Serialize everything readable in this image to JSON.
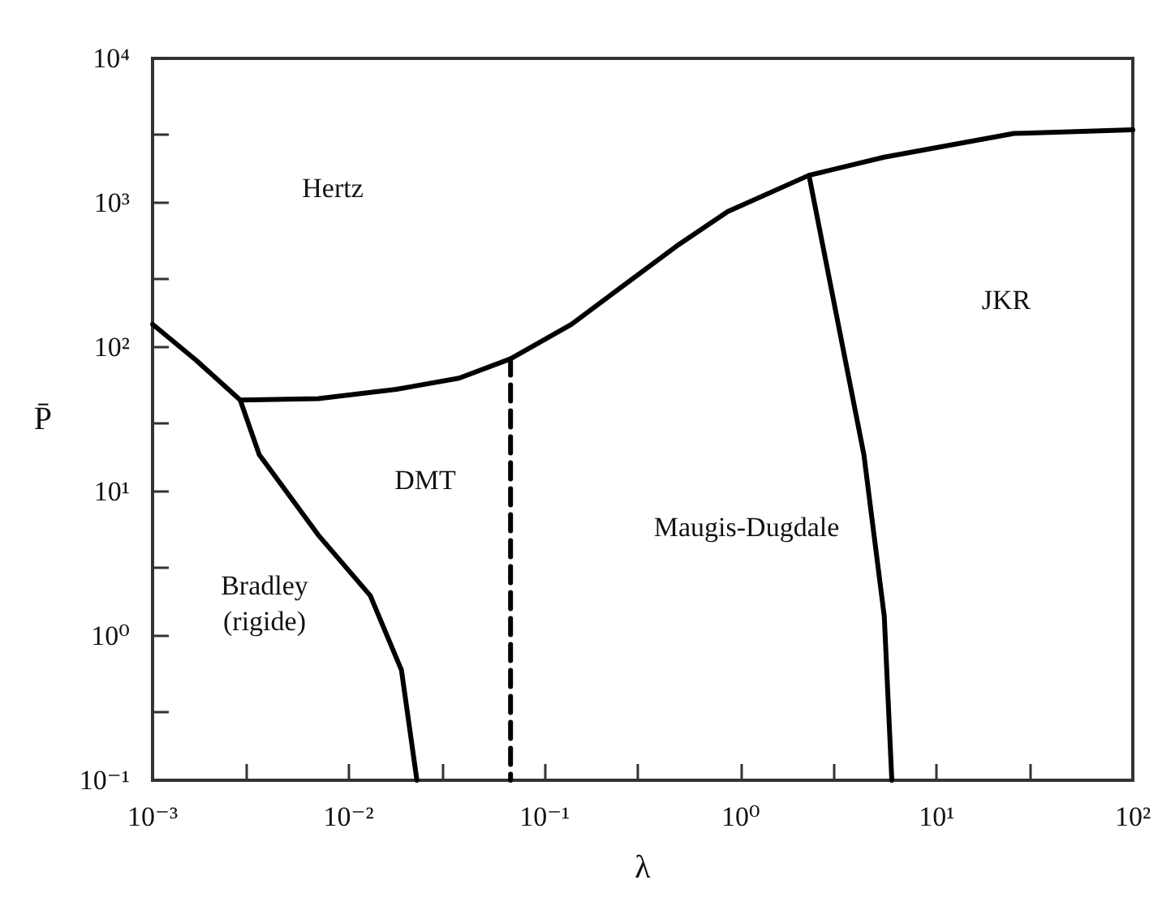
{
  "chart_data": {
    "type": "line",
    "xlabel": "λ",
    "ylabel": "P̄",
    "log": "xy",
    "grid": false,
    "marker": "none",
    "xlim": [
      0.001,
      100
    ],
    "ylim": [
      0.1,
      10000
    ],
    "xticks": [
      {
        "value": 0.001,
        "label": "10⁻³"
      },
      {
        "value": 0.003,
        "label": null
      },
      {
        "value": 0.01,
        "label": "10⁻²"
      },
      {
        "value": 0.03,
        "label": null
      },
      {
        "value": 0.1,
        "label": "10⁻¹"
      },
      {
        "value": 0.3,
        "label": null
      },
      {
        "value": 1,
        "label": "10⁰"
      },
      {
        "value": 3,
        "label": null
      },
      {
        "value": 10,
        "label": "10¹"
      },
      {
        "value": 30,
        "label": null
      },
      {
        "value": 100,
        "label": "10²"
      }
    ],
    "yticks": [
      {
        "value": 0.1,
        "label": "10⁻¹"
      },
      {
        "value": 0.3,
        "label": null
      },
      {
        "value": 1,
        "label": "10⁰"
      },
      {
        "value": 3,
        "label": null
      },
      {
        "value": 10,
        "label": "10¹"
      },
      {
        "value": 30,
        "label": null
      },
      {
        "value": 100,
        "label": "10²"
      },
      {
        "value": 300,
        "label": null
      },
      {
        "value": 1000,
        "label": "10³"
      },
      {
        "value": 3000,
        "label": null
      },
      {
        "value": 10000,
        "label": "10⁴"
      }
    ],
    "series": [
      {
        "color": "#000000",
        "line_style": "solid",
        "x": [
          0.0028,
          0.007,
          0.0175,
          0.0366,
          0.067,
          0.137,
          0.47,
          0.86,
          2.23,
          5.4,
          24.8,
          100
        ],
        "values": [
          43,
          44,
          51,
          61,
          83,
          144,
          500,
          870,
          1550,
          2070,
          3020,
          3200
        ]
      },
      {
        "color": "#000000",
        "line_style": "solid",
        "x": [
          0.001,
          0.00167,
          0.0028,
          0.0035,
          0.007,
          0.0129,
          0.0186,
          0.0223
        ],
        "values": [
          144,
          81,
          43,
          18,
          5.0,
          1.9,
          0.58,
          0.1
        ]
      },
      {
        "color": "#000000",
        "line_style": "dashed",
        "x": [
          0.067,
          0.067
        ],
        "values": [
          83,
          0.1
        ]
      },
      {
        "color": "#000000",
        "line_style": "solid",
        "x": [
          2.23,
          4.25,
          5.4,
          5.9
        ],
        "values": [
          1550,
          18,
          1.36,
          0.1
        ]
      }
    ],
    "annotations": [
      "Hertz",
      "DMT",
      "Bradley\n(rigide)",
      "Maugis-Dugdale",
      "JKR"
    ]
  }
}
